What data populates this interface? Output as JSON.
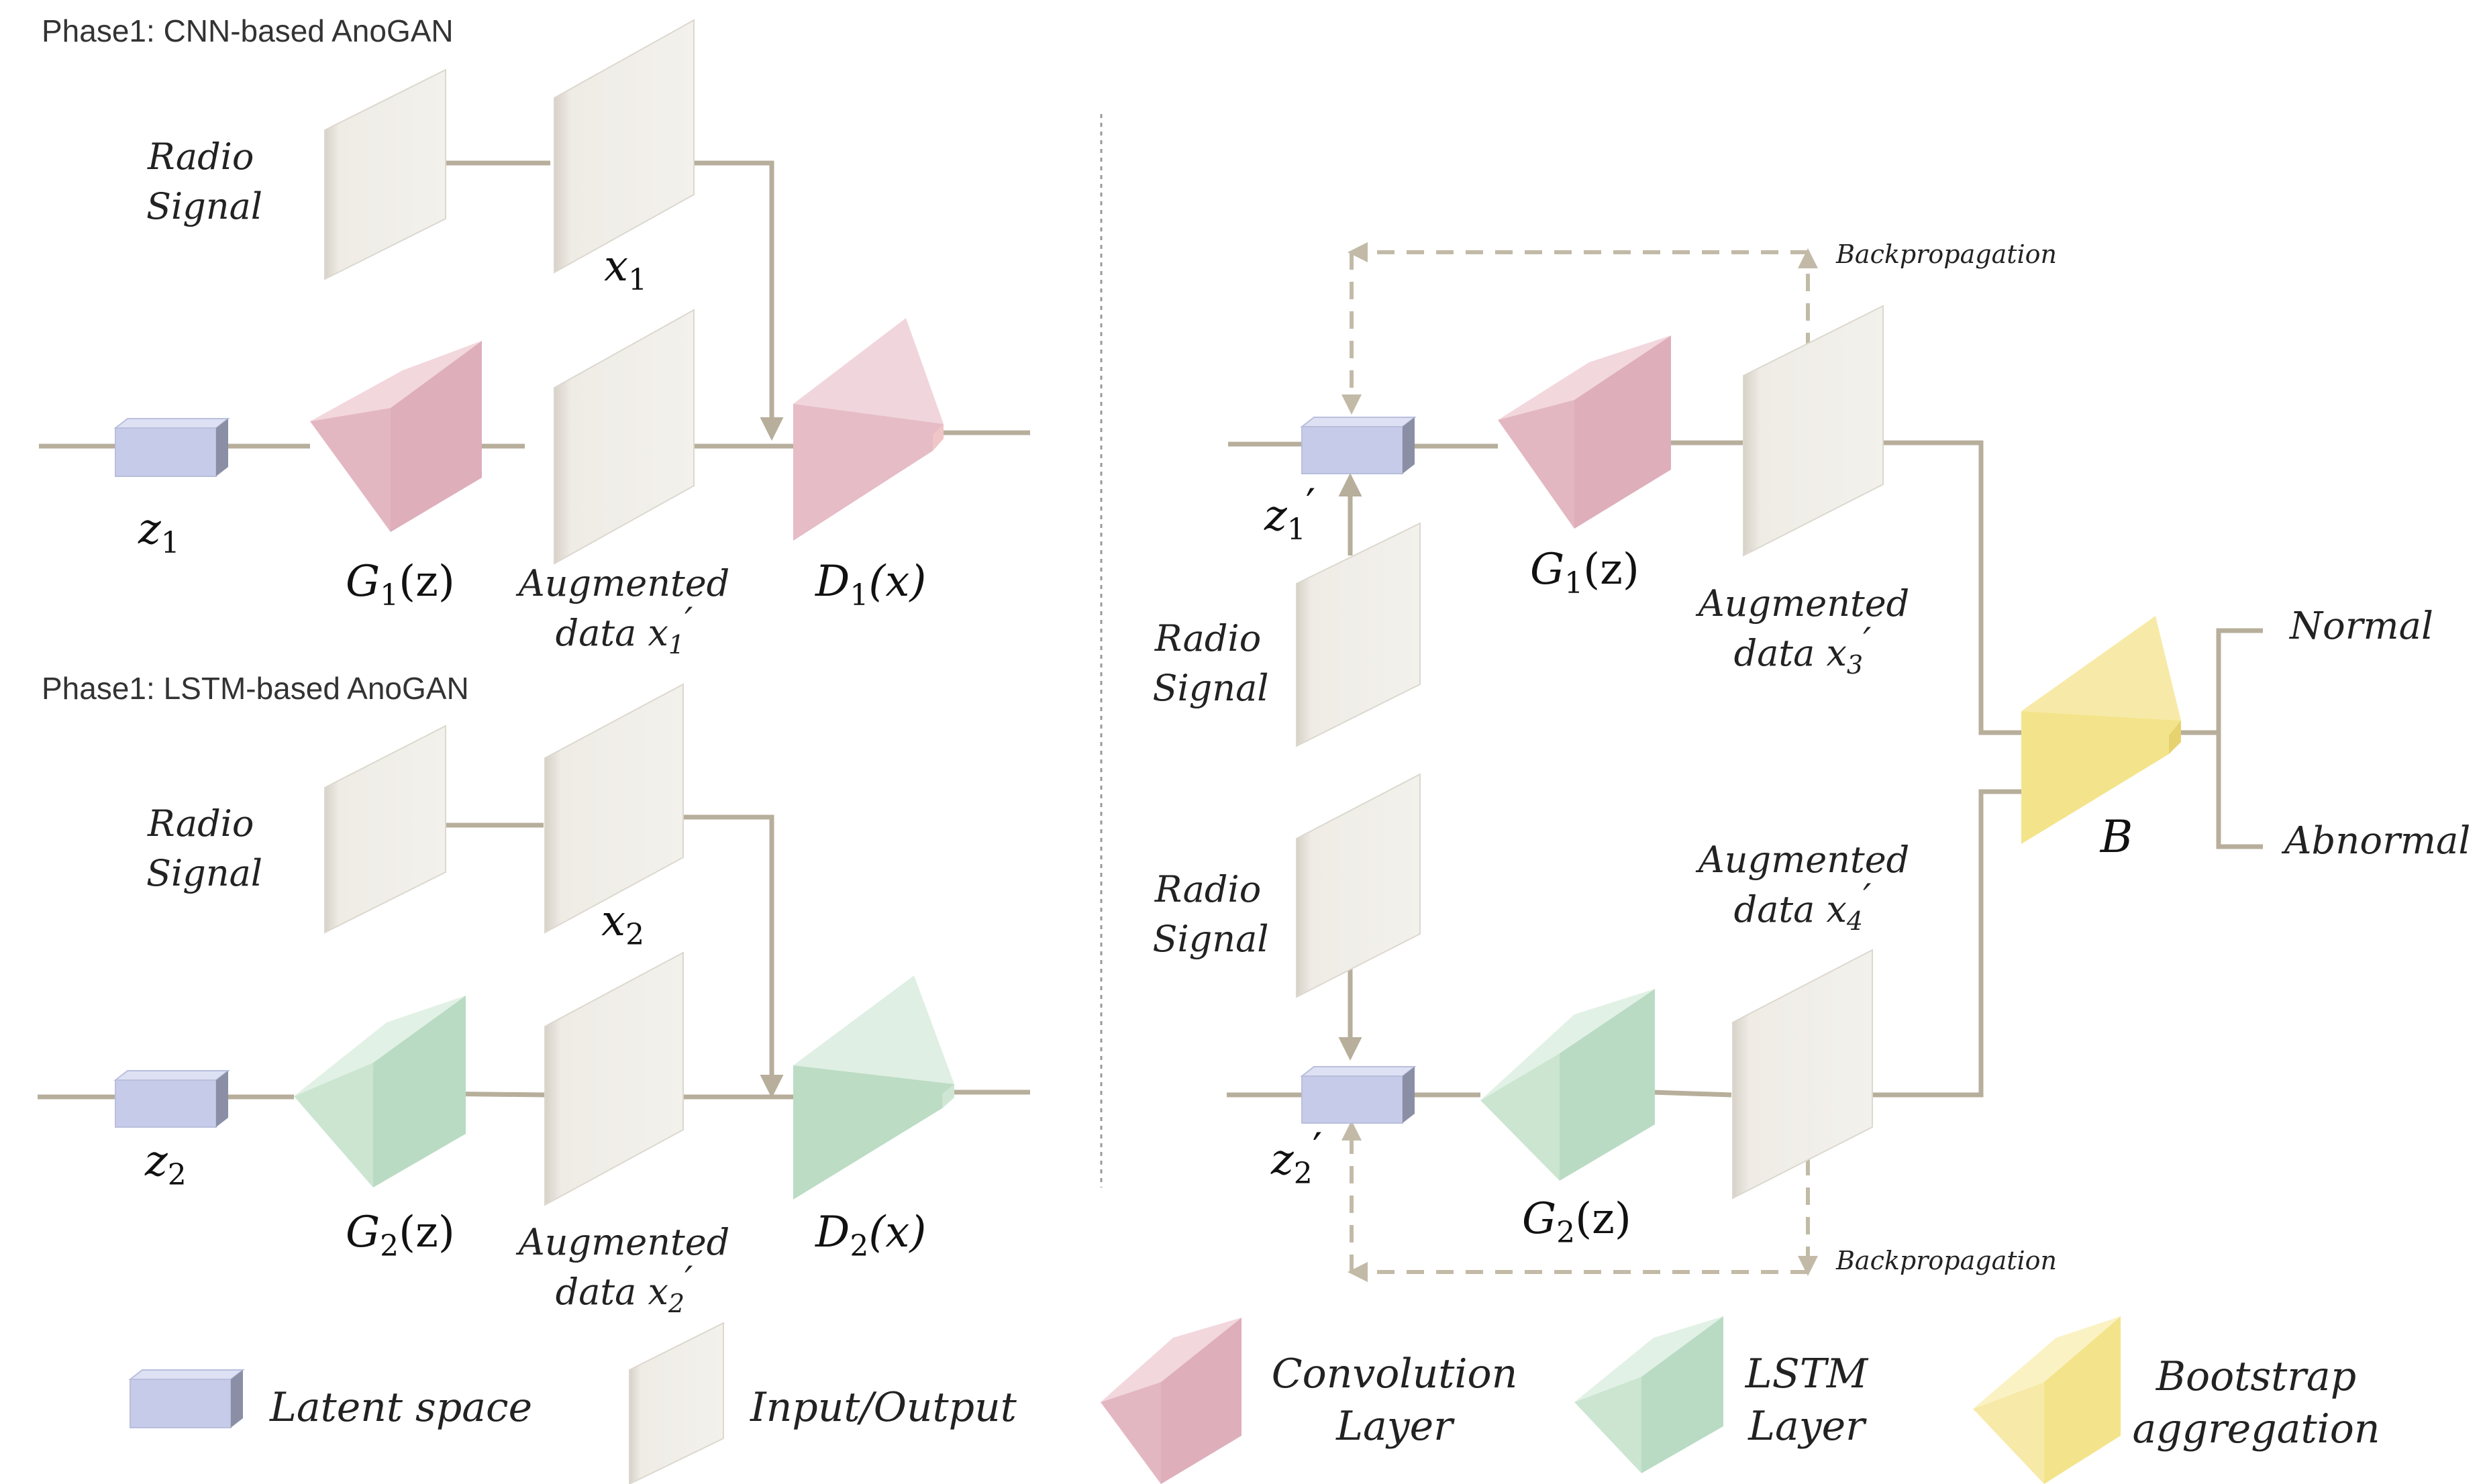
{
  "phase1_cnn": {
    "title": "Phase1: CNN-based AnoGAN",
    "radio_line1": "Radio",
    "radio_line2": "Signal",
    "x_var": "x",
    "x_sub": "1",
    "z_var": "z",
    "z_sub": "1",
    "g_var": "G",
    "g_sub": "1",
    "g_arg": "(z)",
    "aug_line1": "Augmented",
    "aug_line2": "data x",
    "aug_sub": "1",
    "aug_prime": "′",
    "d_var": "D",
    "d_sub": "1",
    "d_arg": "(x)"
  },
  "phase1_lstm": {
    "title": "Phase1: LSTM-based AnoGAN",
    "radio_line1": "Radio",
    "radio_line2": "Signal",
    "x_var": "x",
    "x_sub": "2",
    "z_var": "z",
    "z_sub": "2",
    "g_var": "G",
    "g_sub": "2",
    "g_arg": "(z)",
    "aug_line1": "Augmented",
    "aug_line2": "data x",
    "aug_sub": "2",
    "aug_prime": "′",
    "d_var": "D",
    "d_sub": "2",
    "d_arg": "(x)"
  },
  "phase2": {
    "backprop_top": "Backpropagation",
    "backprop_bottom": "Backpropagation",
    "z1_var": "z",
    "z1_sub": "1",
    "z1_prime": "′",
    "z2_var": "z",
    "z2_sub": "2",
    "z2_prime": "′",
    "radio1_line1": "Radio",
    "radio1_line2": "Signal",
    "radio2_line1": "Radio",
    "radio2_line2": "Signal",
    "g1_var": "G",
    "g1_sub": "1",
    "g1_arg": "(z)",
    "g2_var": "G",
    "g2_sub": "2",
    "g2_arg": "(z)",
    "aug3_line1": "Augmented",
    "aug3_line2": "data x",
    "aug3_sub": "3",
    "aug3_prime": "′",
    "aug4_line1": "Augmented",
    "aug4_line2": "data x",
    "aug4_sub": "4",
    "aug4_prime": "′",
    "b_label": "B",
    "out_normal": "Normal",
    "out_abnormal": "Abnormal"
  },
  "legend": {
    "latent": "Latent space",
    "io": "Input/Output",
    "conv_line1": "Convolution",
    "conv_line2": "Layer",
    "lstm_line1": "LSTM",
    "lstm_line2": "Layer",
    "boot_line1": "Bootstrap",
    "boot_line2": "aggregation"
  },
  "colors": {
    "latent": "#c5cbe9",
    "input_output": "#eeece6",
    "convolution": "#e6bcc6",
    "lstm": "#c2dfca",
    "bootstrap": "#f3e48b",
    "connector": "#b7ae9b"
  }
}
